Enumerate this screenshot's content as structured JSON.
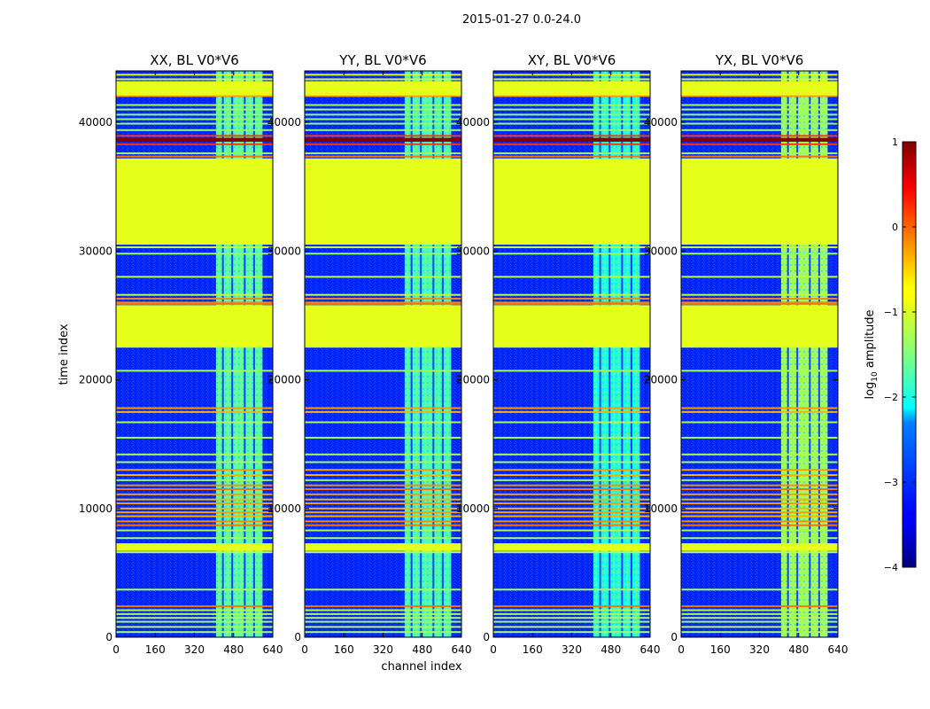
{
  "chart_data": {
    "type": "heatmap",
    "suptitle": "2015-01-27 0.0-24.0",
    "xlabel": "channel index",
    "ylabel": "time index",
    "x_range": [
      0,
      640
    ],
    "y_range": [
      0,
      44000
    ],
    "x_ticks": [
      0,
      160,
      320,
      480,
      640
    ],
    "y_ticks": [
      0,
      10000,
      20000,
      30000,
      40000
    ],
    "panels": [
      {
        "title": "XX, BL V0*V6",
        "rfi_band_channels": [
          408,
          598
        ],
        "band_level": -1.7
      },
      {
        "title": "YY, BL V0*V6",
        "rfi_band_channels": [
          408,
          598
        ],
        "band_level": -1.8
      },
      {
        "title": "XY, BL V0*V6",
        "rfi_band_channels": [
          408,
          598
        ],
        "band_level": -2.0
      },
      {
        "title": "YX, BL V0*V6",
        "rfi_band_channels": [
          408,
          598
        ],
        "band_level": -1.3
      }
    ],
    "background_level": -3.2,
    "flagged_value": -1.0,
    "flagged_time_ranges": [
      [
        42100,
        43200
      ],
      [
        30500,
        37200
      ],
      [
        22500,
        25800
      ],
      [
        6700,
        7300
      ]
    ],
    "hot_time_ranges": [
      [
        38500,
        38800
      ]
    ],
    "line_rows": [
      {
        "t": 43700,
        "v": -1.0
      },
      {
        "t": 43350,
        "v": -1.0
      },
      {
        "t": 42050,
        "v": -0.4
      },
      {
        "t": 41350,
        "v": -1.3
      },
      {
        "t": 41000,
        "v": -1.3
      },
      {
        "t": 40600,
        "v": -1.4
      },
      {
        "t": 40250,
        "v": -1.4
      },
      {
        "t": 39900,
        "v": -1.4
      },
      {
        "t": 39400,
        "v": -1.4
      },
      {
        "t": 38950,
        "v": 0.1
      },
      {
        "t": 38300,
        "v": 0.1
      },
      {
        "t": 37600,
        "v": -1.4
      },
      {
        "t": 37350,
        "v": -0.2
      },
      {
        "t": 30300,
        "v": -1.2
      },
      {
        "t": 29800,
        "v": -1.4
      },
      {
        "t": 28000,
        "v": -1.2
      },
      {
        "t": 26600,
        "v": -1.2
      },
      {
        "t": 26300,
        "v": -0.3
      },
      {
        "t": 26000,
        "v": -0.3
      },
      {
        "t": 25900,
        "v": -0.2
      },
      {
        "t": 22600,
        "v": -0.2
      },
      {
        "t": 20700,
        "v": -1.3
      },
      {
        "t": 17800,
        "v": -0.4
      },
      {
        "t": 17500,
        "v": -0.5
      },
      {
        "t": 16700,
        "v": -1.3
      },
      {
        "t": 15500,
        "v": -1.3
      },
      {
        "t": 14200,
        "v": -1.3
      },
      {
        "t": 13600,
        "v": -1.3
      },
      {
        "t": 13000,
        "v": -0.4
      },
      {
        "t": 12600,
        "v": -0.5
      },
      {
        "t": 12200,
        "v": -1.3
      },
      {
        "t": 11800,
        "v": -0.3
      },
      {
        "t": 11500,
        "v": -0.2
      },
      {
        "t": 11100,
        "v": -0.4
      },
      {
        "t": 10700,
        "v": -0.5
      },
      {
        "t": 10400,
        "v": -0.4
      },
      {
        "t": 10000,
        "v": -0.5
      },
      {
        "t": 9700,
        "v": -0.4
      },
      {
        "t": 9400,
        "v": -0.5
      },
      {
        "t": 9000,
        "v": -0.3
      },
      {
        "t": 8700,
        "v": -0.2
      },
      {
        "t": 8300,
        "v": -1.3
      },
      {
        "t": 7700,
        "v": -1.3
      },
      {
        "t": 6600,
        "v": -1.2
      },
      {
        "t": 3700,
        "v": -1.3
      },
      {
        "t": 2400,
        "v": -0.2
      },
      {
        "t": 2100,
        "v": -1.2
      },
      {
        "t": 1800,
        "v": -1.3
      },
      {
        "t": 1500,
        "v": -1.2
      },
      {
        "t": 1200,
        "v": -1.3
      },
      {
        "t": 800,
        "v": -1.2
      },
      {
        "t": 400,
        "v": -1.3
      }
    ],
    "colorbar": {
      "label": "log10 amplitude",
      "label_main": "log",
      "label_sub": "10",
      "label_rest": " amplitude",
      "range": [
        -4,
        1
      ],
      "ticks": [
        1,
        0,
        -1,
        -2,
        -3,
        -4
      ],
      "tick_labels": [
        "1",
        "0",
        "−1",
        "−2",
        "−3",
        "−4"
      ],
      "colormap": "jet"
    }
  }
}
